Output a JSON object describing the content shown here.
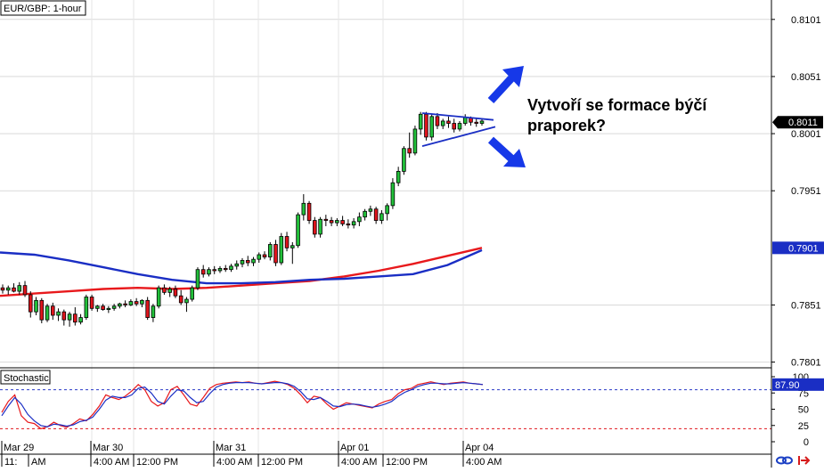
{
  "chart_data": [
    {
      "type": "candlestick",
      "title": "EUR/GBP: 1-hour",
      "annotation": "Vytvoří se formace býčí praporek?",
      "ylim": [
        0.7796,
        0.8118
      ],
      "y_ticks": [
        "0.8101",
        "0.8051",
        "0.8001",
        "0.7951",
        "0.7851",
        "0.7801"
      ],
      "last_price": "0.8011",
      "ma_level": "0.7901",
      "time_labels_top": [
        "Mar 29",
        "Mar 30",
        "Mar 31",
        "Apr 01",
        "Apr 04"
      ],
      "time_labels_bottom": [
        "11:",
        "AM",
        "4:00 AM",
        "12:00 PM",
        "4:00 AM",
        "12:00 PM",
        "4:00 AM",
        "12:00 PM",
        "4:00 AM"
      ],
      "candles": [
        [
          0.7866,
          0.7869,
          0.7861,
          0.7864
        ],
        [
          0.7864,
          0.7868,
          0.786,
          0.7866
        ],
        [
          0.7866,
          0.787,
          0.7862,
          0.7863
        ],
        [
          0.7863,
          0.7871,
          0.786,
          0.7868
        ],
        [
          0.7868,
          0.7872,
          0.7858,
          0.786
        ],
        [
          0.786,
          0.7863,
          0.784,
          0.7845
        ],
        [
          0.7845,
          0.7858,
          0.7842,
          0.7855
        ],
        [
          0.7855,
          0.7857,
          0.7835,
          0.7838
        ],
        [
          0.7838,
          0.7852,
          0.7836,
          0.785
        ],
        [
          0.785,
          0.7853,
          0.7838,
          0.7842
        ],
        [
          0.7842,
          0.7848,
          0.7837,
          0.7845
        ],
        [
          0.7845,
          0.7847,
          0.7833,
          0.7838
        ],
        [
          0.7838,
          0.7845,
          0.7832,
          0.7843
        ],
        [
          0.7843,
          0.7849,
          0.7833,
          0.7836
        ],
        [
          0.7836,
          0.7843,
          0.7834,
          0.784
        ],
        [
          0.784,
          0.786,
          0.7838,
          0.7858
        ],
        [
          0.7858,
          0.786,
          0.7846,
          0.7848
        ],
        [
          0.7848,
          0.7851,
          0.7845,
          0.785
        ],
        [
          0.785,
          0.7852,
          0.7846,
          0.7847
        ],
        [
          0.7847,
          0.785,
          0.7844,
          0.7848
        ],
        [
          0.7848,
          0.7852,
          0.7846,
          0.785
        ],
        [
          0.785,
          0.7853,
          0.7848,
          0.7852
        ],
        [
          0.7852,
          0.7855,
          0.7849,
          0.7851
        ],
        [
          0.7851,
          0.7856,
          0.785,
          0.7854
        ],
        [
          0.7854,
          0.7857,
          0.785,
          0.7852
        ],
        [
          0.7852,
          0.7856,
          0.7849,
          0.7855
        ],
        [
          0.7855,
          0.7858,
          0.7838,
          0.784
        ],
        [
          0.784,
          0.7852,
          0.7836,
          0.785
        ],
        [
          0.785,
          0.7868,
          0.7848,
          0.7866
        ],
        [
          0.7866,
          0.7869,
          0.786,
          0.7862
        ],
        [
          0.7862,
          0.7867,
          0.7858,
          0.7865
        ],
        [
          0.7865,
          0.7868,
          0.7857,
          0.7859
        ],
        [
          0.7859,
          0.7864,
          0.7851,
          0.7853
        ],
        [
          0.7853,
          0.7858,
          0.7845,
          0.7856
        ],
        [
          0.7856,
          0.7868,
          0.7854,
          0.7866
        ],
        [
          0.7866,
          0.7884,
          0.7864,
          0.7882
        ],
        [
          0.7882,
          0.7886,
          0.7875,
          0.7878
        ],
        [
          0.7878,
          0.7884,
          0.7876,
          0.7882
        ],
        [
          0.7882,
          0.7885,
          0.7878,
          0.7881
        ],
        [
          0.7881,
          0.7885,
          0.7879,
          0.7883
        ],
        [
          0.7883,
          0.7886,
          0.788,
          0.7882
        ],
        [
          0.7882,
          0.7887,
          0.788,
          0.7885
        ],
        [
          0.7885,
          0.789,
          0.7882,
          0.7887
        ],
        [
          0.7887,
          0.7892,
          0.7884,
          0.789
        ],
        [
          0.789,
          0.7894,
          0.7885,
          0.7888
        ],
        [
          0.7888,
          0.7893,
          0.7885,
          0.7891
        ],
        [
          0.7891,
          0.7897,
          0.7888,
          0.7895
        ],
        [
          0.7895,
          0.7898,
          0.7891,
          0.7893
        ],
        [
          0.7893,
          0.7906,
          0.789,
          0.7904
        ],
        [
          0.7904,
          0.7908,
          0.7885,
          0.7888
        ],
        [
          0.7888,
          0.7914,
          0.7886,
          0.7911
        ],
        [
          0.7911,
          0.7915,
          0.7898,
          0.7901
        ],
        [
          0.7901,
          0.7906,
          0.7887,
          0.7903
        ],
        [
          0.7903,
          0.7932,
          0.7901,
          0.793
        ],
        [
          0.793,
          0.7948,
          0.7925,
          0.794
        ],
        [
          0.794,
          0.7942,
          0.7922,
          0.7925
        ],
        [
          0.7925,
          0.7928,
          0.791,
          0.7913
        ],
        [
          0.7913,
          0.7928,
          0.791,
          0.7926
        ],
        [
          0.7926,
          0.793,
          0.792,
          0.7925
        ],
        [
          0.7925,
          0.7928,
          0.792,
          0.7923
        ],
        [
          0.7923,
          0.7927,
          0.792,
          0.7925
        ],
        [
          0.7925,
          0.7929,
          0.792,
          0.7922
        ],
        [
          0.7922,
          0.7926,
          0.7918,
          0.7921
        ],
        [
          0.7921,
          0.7927,
          0.7918,
          0.7924
        ],
        [
          0.7924,
          0.7932,
          0.792,
          0.7928
        ],
        [
          0.7928,
          0.7935,
          0.7925,
          0.7933
        ],
        [
          0.7933,
          0.7938,
          0.7929,
          0.7935
        ],
        [
          0.7935,
          0.7937,
          0.7922,
          0.7925
        ],
        [
          0.7925,
          0.7934,
          0.7922,
          0.7931
        ],
        [
          0.7931,
          0.794,
          0.7925,
          0.7938
        ],
        [
          0.7938,
          0.7962,
          0.7935,
          0.7958
        ],
        [
          0.7958,
          0.7972,
          0.7955,
          0.7968
        ],
        [
          0.7968,
          0.799,
          0.7965,
          0.7988
        ],
        [
          0.7988,
          0.8002,
          0.798,
          0.7984
        ],
        [
          0.7984,
          0.8008,
          0.7982,
          0.8005
        ],
        [
          0.8005,
          0.802,
          0.8,
          0.8018
        ],
        [
          0.8018,
          0.802,
          0.7995,
          0.7998
        ],
        [
          0.7998,
          0.8018,
          0.7995,
          0.8016
        ],
        [
          0.8016,
          0.8019,
          0.8005,
          0.8008
        ],
        [
          0.8008,
          0.8014,
          0.8005,
          0.8012
        ],
        [
          0.8012,
          0.8016,
          0.8006,
          0.801
        ],
        [
          0.801,
          0.8014,
          0.8002,
          0.8005
        ],
        [
          0.8005,
          0.8012,
          0.8003,
          0.801
        ],
        [
          0.801,
          0.8018,
          0.8008,
          0.8015
        ],
        [
          0.8015,
          0.8016,
          0.8008,
          0.8011
        ],
        [
          0.8011,
          0.8014,
          0.8007,
          0.801
        ],
        [
          0.801,
          0.8014,
          0.8008,
          0.8012
        ]
      ],
      "series": [
        {
          "name": "",
          "color": "#e8191c",
          "y": [
            0.7859,
            0.7861,
            0.7863,
            0.7865,
            0.7866,
            0.7865,
            0.7866,
            0.7868,
            0.787,
            0.7872,
            0.7876,
            0.7881,
            0.7887,
            0.7894,
            0.7901
          ]
        },
        {
          "name": "",
          "color": "#1a2ec4",
          "y": [
            0.7897,
            0.7895,
            0.789,
            0.7884,
            0.7878,
            0.7873,
            0.787,
            0.787,
            0.7871,
            0.7873,
            0.7874,
            0.7876,
            0.7878,
            0.7886,
            0.7899
          ]
        }
      ],
      "trendline_upper": [
        0.8019,
        0.8013
      ],
      "trendline_lower": [
        0.799,
        0.8007
      ]
    },
    {
      "type": "line",
      "title": "Stochastic",
      "ylim": [
        0,
        100
      ],
      "y_ticks": [
        "100",
        "75",
        "50",
        "25",
        "0"
      ],
      "value_label": "87.90",
      "levels": [
        80,
        20
      ],
      "series": [
        {
          "name": "",
          "color": "#e8191c",
          "y": [
            45,
            62,
            72,
            40,
            30,
            28,
            20,
            23,
            30,
            25,
            22,
            28,
            35,
            32,
            42,
            55,
            72,
            68,
            65,
            70,
            78,
            88,
            80,
            62,
            55,
            60,
            80,
            85,
            72,
            58,
            55,
            68,
            82,
            88,
            90,
            91,
            92,
            91,
            92,
            90,
            89,
            91,
            93,
            91,
            88,
            82,
            72,
            60,
            70,
            68,
            58,
            50,
            55,
            60,
            58,
            56,
            54,
            52,
            58,
            62,
            65,
            74,
            80,
            82,
            88,
            90,
            92,
            90,
            88,
            90,
            91,
            92,
            90,
            89,
            88
          ]
        },
        {
          "name": "",
          "color": "#1a2ec4",
          "y": [
            40,
            55,
            68,
            58,
            42,
            32,
            25,
            23,
            27,
            26,
            24,
            26,
            31,
            33,
            38,
            50,
            64,
            70,
            68,
            68,
            72,
            82,
            84,
            75,
            62,
            58,
            70,
            80,
            78,
            68,
            60,
            62,
            74,
            84,
            88,
            90,
            91,
            91,
            91,
            90,
            89,
            90,
            91,
            91,
            89,
            85,
            77,
            66,
            65,
            68,
            62,
            55,
            54,
            57,
            58,
            57,
            55,
            53,
            55,
            58,
            62,
            70,
            76,
            80,
            85,
            88,
            90,
            90,
            89,
            89,
            90,
            91,
            90,
            89,
            88
          ]
        }
      ]
    }
  ],
  "footer": {
    "link_icon": "link-icon",
    "exit_icon": "exit-arrow-icon"
  }
}
